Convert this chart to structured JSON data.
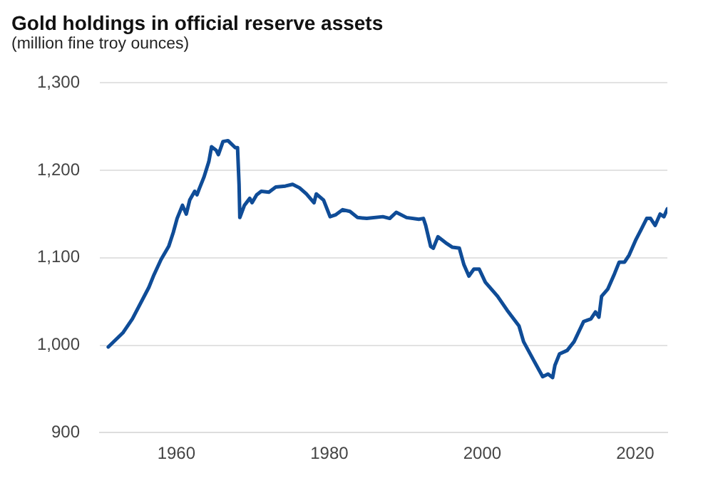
{
  "chart_data": {
    "type": "line",
    "title": "Gold holdings in official reserve assets",
    "subtitle": "(million fine troy ounces)",
    "x": [
      1951.1,
      1953,
      1954.25,
      1956.4,
      1957,
      1958,
      1959,
      1959.6,
      1960.1,
      1960.8,
      1961.3,
      1961.75,
      1962.4,
      1962.7,
      1963,
      1963.6,
      1964.25,
      1964.6,
      1965.2,
      1965.5,
      1966.1,
      1966.75,
      1967.7,
      1968,
      1968.2,
      1968.3,
      1968.9,
      1969.6,
      1969.9,
      1970.5,
      1971.1,
      1972.1,
      1973,
      1974.25,
      1975.2,
      1976.1,
      1977,
      1977.7,
      1978,
      1978.3,
      1979.25,
      1980.1,
      1980.8,
      1981.75,
      1982.7,
      1983.7,
      1984.9,
      1987,
      1987.9,
      1988.75,
      1990.1,
      1991.7,
      1992.3,
      1992.6,
      1993.25,
      1993.6,
      1994.2,
      1995.4,
      1996.1,
      1997,
      1997.6,
      1998.25,
      1998.9,
      1999.6,
      2000.4,
      2002,
      2003.25,
      2004.8,
      2005.4,
      2006.7,
      2007.9,
      2008.6,
      2009.2,
      2009.5,
      2010.1,
      2011.1,
      2012,
      2013.25,
      2014.2,
      2014.8,
      2015.25,
      2015.6,
      2016.4,
      2017.3,
      2017.9,
      2018.6,
      2019.2,
      2020.1,
      2020.75,
      2021.5,
      2022,
      2022.6,
      2023.25,
      2023.75,
      2024.2
    ],
    "series": [
      {
        "color": "#0f4c97",
        "values": [
          998,
          1014,
          1030,
          1066,
          1079,
          1098,
          1113,
          1129,
          1145,
          1160,
          1150,
          1166,
          1176,
          1172,
          1179,
          1192,
          1210,
          1227,
          1223,
          1218,
          1233,
          1234,
          1226,
          1226,
          1184,
          1146,
          1160,
          1168,
          1163,
          1172,
          1176,
          1175,
          1181,
          1182,
          1184,
          1180,
          1173,
          1166,
          1163,
          1173,
          1166,
          1147,
          1149,
          1155,
          1153,
          1146,
          1145,
          1147,
          1145,
          1152,
          1146,
          1144,
          1145,
          1137,
          1113,
          1111,
          1124,
          1116,
          1112,
          1111,
          1092,
          1079,
          1087,
          1087,
          1072,
          1056,
          1040,
          1022,
          1004,
          983,
          964,
          967,
          963,
          977,
          990,
          994,
          1004,
          1027,
          1030,
          1038,
          1032,
          1056,
          1064,
          1082,
          1095,
          1095,
          1103,
          1121,
          1132,
          1145,
          1145,
          1137,
          1150,
          1147,
          1156
        ]
      }
    ],
    "xlim": [
      1950,
      2024.2
    ],
    "xticks": [
      1960,
      1980,
      2000,
      2020
    ],
    "ylim": [
      900,
      1300
    ],
    "yticks": [
      {
        "value": 900,
        "label": "900"
      },
      {
        "value": 1000,
        "label": "1,000"
      },
      {
        "value": 1100,
        "label": "1,100"
      },
      {
        "value": 1200,
        "label": "1,200"
      },
      {
        "value": 1300,
        "label": "1,300"
      }
    ],
    "grid": "y",
    "legend": false,
    "marker": "none",
    "line_style": "solid"
  }
}
